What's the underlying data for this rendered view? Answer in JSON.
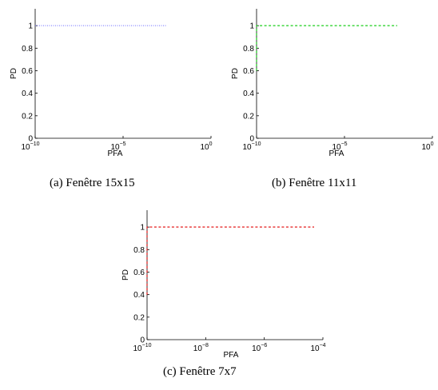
{
  "chart_data": [
    {
      "type": "line",
      "caption": "(a)  Fenêtre 15x15",
      "xlabel": "PFA",
      "ylabel": "PD",
      "xscale": "log",
      "xlim": [
        1e-10,
        1
      ],
      "ylim": [
        0,
        1.15
      ],
      "x_ticks": [
        {
          "base": "10",
          "exp": "−10"
        },
        {
          "base": "10",
          "exp": "−5"
        },
        {
          "base": "10",
          "exp": "0"
        }
      ],
      "y_ticks": [
        "0",
        "0.2",
        "0.4",
        "0.6",
        "0.8",
        "1"
      ],
      "series": [
        {
          "color": "#7b7bff",
          "style": "dotted",
          "x": [
            1e-10,
            0.003
          ],
          "y": [
            1,
            1
          ]
        }
      ]
    },
    {
      "type": "line",
      "caption": "(b)  Fenêtre 11x11",
      "xlabel": "PFA",
      "ylabel": "PD",
      "xscale": "log",
      "xlim": [
        1e-10,
        1
      ],
      "ylim": [
        0,
        1.15
      ],
      "x_ticks": [
        {
          "base": "10",
          "exp": "−10"
        },
        {
          "base": "10",
          "exp": "−5"
        },
        {
          "base": "10",
          "exp": "0"
        }
      ],
      "y_ticks": [
        "0",
        "0.2",
        "0.4",
        "0.6",
        "0.8",
        "1"
      ],
      "series": [
        {
          "color": "#00c800",
          "style": "dashed",
          "x": [
            1e-10,
            1e-10,
            0.01
          ],
          "y": [
            0.6,
            1,
            1
          ]
        }
      ]
    },
    {
      "type": "line",
      "caption": "(c)  Fenêtre 7x7",
      "xlabel": "PFA",
      "ylabel": "PD",
      "xscale": "log",
      "xlim": [
        1e-10,
        0.0001
      ],
      "ylim": [
        0,
        1.15
      ],
      "x_ticks": [
        {
          "base": "10",
          "exp": "−10"
        },
        {
          "base": "10",
          "exp": "−8"
        },
        {
          "base": "10",
          "exp": "−6"
        },
        {
          "base": "10",
          "exp": "−4"
        }
      ],
      "y_ticks": [
        "0",
        "0.2",
        "0.4",
        "0.6",
        "0.8",
        "1"
      ],
      "series": [
        {
          "color": "#e00000",
          "style": "dashed",
          "x": [
            1e-10,
            1e-10,
            5e-05
          ],
          "y": [
            0.4,
            1,
            1
          ]
        }
      ]
    }
  ]
}
